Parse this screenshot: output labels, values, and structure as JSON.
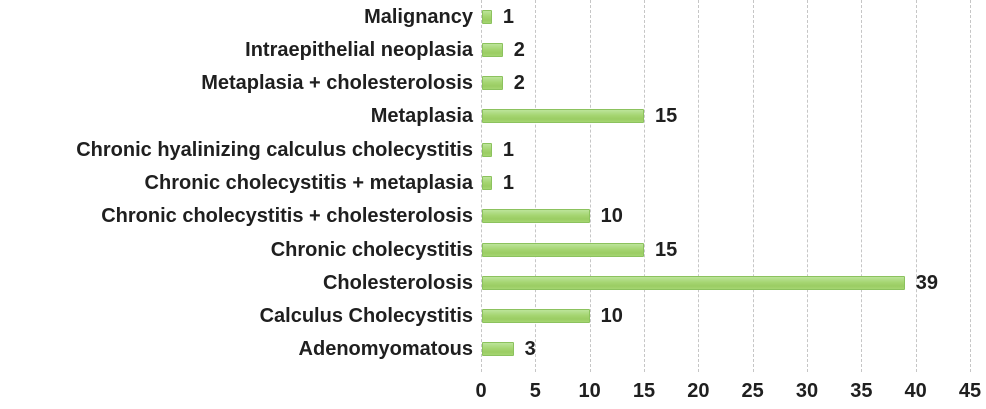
{
  "chart_data": {
    "type": "bar",
    "orientation": "horizontal",
    "title": "",
    "xlabel": "",
    "ylabel": "",
    "categories": [
      "Malignancy",
      "Intraepithelial neoplasia",
      "Metaplasia + cholesterolosis",
      "Metaplasia",
      "Chronic hyalinizing calculus cholecystitis",
      "Chronic cholecystitis + metaplasia",
      "Chronic cholecystitis + cholesterolosis",
      "Chronic cholecystitis",
      "Cholesterolosis",
      "Calculus Cholecystitis",
      "Adenomyomatous"
    ],
    "values": [
      1,
      2,
      2,
      15,
      1,
      1,
      10,
      15,
      39,
      10,
      3
    ],
    "data_labels": [
      "1",
      "2",
      "2",
      "15",
      "1",
      "1",
      "10",
      "15",
      "39",
      "10",
      "3"
    ],
    "x_ticks": [
      0,
      5,
      10,
      15,
      20,
      25,
      30,
      35,
      40,
      45
    ],
    "xlim": [
      0,
      45
    ],
    "legend_position": "none",
    "grid": "vertical-dashed",
    "colors": {
      "bar_fill": "#a5d571",
      "bar_fill_light": "#bce49a",
      "bar_border": "#8cc25e",
      "gridline": "#c6c6c6",
      "text": "#1f1f1f",
      "background": "#ffffff"
    }
  }
}
